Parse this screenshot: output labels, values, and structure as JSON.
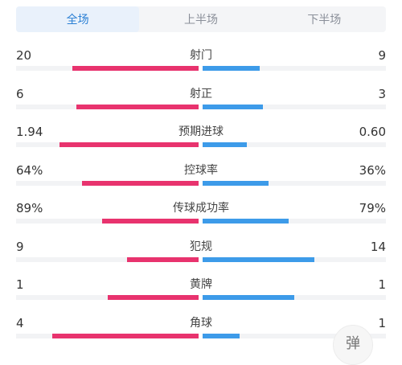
{
  "tabs": [
    {
      "label": "全场",
      "active": true
    },
    {
      "label": "上半场",
      "active": false
    },
    {
      "label": "下半场",
      "active": false
    }
  ],
  "stats": [
    {
      "label": "射门",
      "left": "20",
      "right": "9",
      "left_fraction": 0.69,
      "right_fraction": 0.31
    },
    {
      "label": "射正",
      "left": "6",
      "right": "3",
      "left_fraction": 0.67,
      "right_fraction": 0.33
    },
    {
      "label": "预期进球",
      "left": "1.94",
      "right": "0.60",
      "left_fraction": 0.76,
      "right_fraction": 0.24
    },
    {
      "label": "控球率",
      "left": "64%",
      "right": "36%",
      "left_fraction": 0.64,
      "right_fraction": 0.36
    },
    {
      "label": "传球成功率",
      "left": "89%",
      "right": "79%",
      "left_fraction": 0.53,
      "right_fraction": 0.47
    },
    {
      "label": "犯规",
      "left": "9",
      "right": "14",
      "left_fraction": 0.39,
      "right_fraction": 0.61
    },
    {
      "label": "黄牌",
      "left": "1",
      "right": "1",
      "left_fraction": 0.5,
      "right_fraction": 0.5
    },
    {
      "label": "角球",
      "left": "4",
      "right": "1",
      "left_fraction": 0.8,
      "right_fraction": 0.2
    }
  ],
  "danmaku_button": {
    "label": "弹"
  },
  "colors": {
    "home": "#e8336e",
    "away": "#3d9be9",
    "accent": "#2a7fd4"
  }
}
